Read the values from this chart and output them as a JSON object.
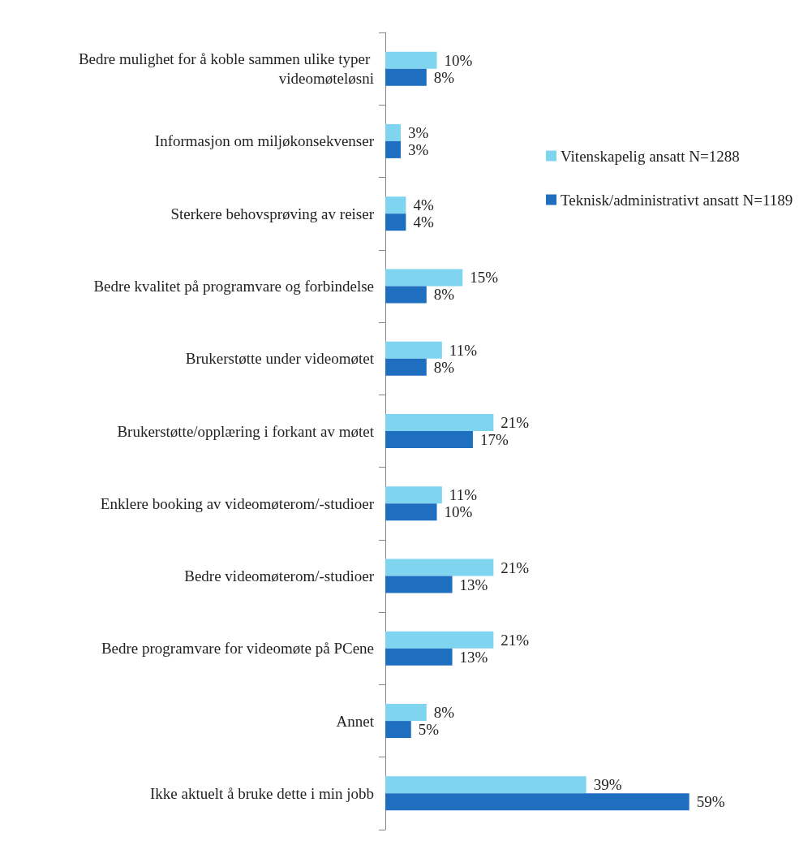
{
  "chart_data": {
    "type": "bar",
    "orientation": "horizontal",
    "categories": [
      "Bedre mulighet for å koble sammen ulike typer videomøteløsni",
      "Informasjon om miljøkonsekvenser",
      "Sterkere behovsprøving av reiser",
      "Bedre kvalitet på programvare og forbindelse",
      "Brukerstøtte under videomøtet",
      "Brukerstøtte/opplæring i forkant av møtet",
      "Enklere booking av videomøterom/-studioer",
      "Bedre videomøterom/-studioer",
      "Bedre programvare for videomøte på PCene",
      "Annet",
      "Ikke aktuelt å bruke dette i min jobb"
    ],
    "series": [
      {
        "name": "Vitenskapelig ansatt N=1288",
        "color": "#7fd4f0",
        "values": [
          10,
          3,
          4,
          15,
          11,
          21,
          11,
          21,
          21,
          8,
          39
        ],
        "value_labels": [
          "10%",
          "3%",
          "4%",
          "15%",
          "11%",
          "21%",
          "11%",
          "21%",
          "21%",
          "8%",
          "39%"
        ]
      },
      {
        "name": "Teknisk/administrativt ansatt N=1189",
        "color": "#1f6fc1",
        "values": [
          8,
          3,
          4,
          8,
          8,
          17,
          10,
          13,
          13,
          5,
          59
        ],
        "value_labels": [
          "8%",
          "3%",
          "4%",
          "8%",
          "8%",
          "17%",
          "10%",
          "13%",
          "13%",
          "5%",
          "59%"
        ]
      }
    ],
    "legend": "top right",
    "tick_labels": "y"
  }
}
